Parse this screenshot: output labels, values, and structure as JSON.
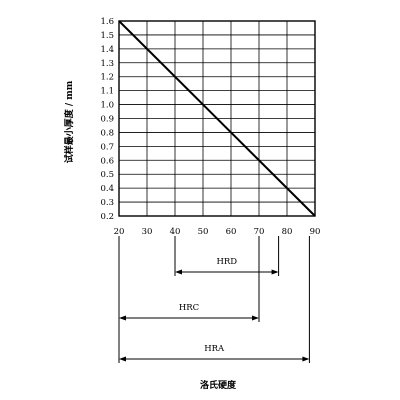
{
  "chart_data": {
    "type": "line",
    "xlabel": "洛氏硬度",
    "ylabel": "试样最小厚度 / mm",
    "xlim": [
      20,
      90
    ],
    "ylim": [
      0.2,
      1.6
    ],
    "grid": true,
    "x_ticks": [
      20,
      30,
      40,
      50,
      60,
      70,
      80,
      90
    ],
    "y_ticks": [
      0.2,
      0.3,
      0.4,
      0.5,
      0.6,
      0.7,
      0.8,
      0.9,
      1.0,
      1.1,
      1.2,
      1.3,
      1.4,
      1.5,
      1.6
    ],
    "x_tick_labels": [
      "20",
      "30",
      "40",
      "50",
      "60",
      "70",
      "80",
      "90"
    ],
    "y_tick_labels": [
      "0.2",
      "0.3",
      "0.4",
      "0.5",
      "0.6",
      "0.7",
      "0.8",
      "0.9",
      "1.0",
      "1.1",
      "1.2",
      "1.3",
      "1.4",
      "1.5",
      "1.6"
    ],
    "series": [
      {
        "x": [
          20,
          90
        ],
        "y": [
          1.6,
          0.2
        ]
      }
    ],
    "ranges": [
      {
        "name": "HRD",
        "x": [
          40,
          77
        ]
      },
      {
        "name": "HRC",
        "x": [
          20,
          70
        ]
      },
      {
        "name": "HRA",
        "x": [
          20,
          88
        ]
      }
    ]
  }
}
